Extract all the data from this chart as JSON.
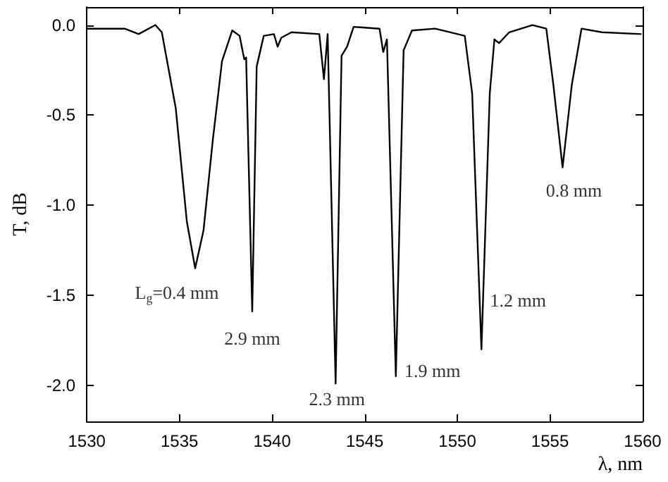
{
  "chart_data": {
    "type": "line",
    "xlabel": "λ, nm",
    "ylabel": "T, dB",
    "color": "#000000",
    "x": [
      1530,
      1532.05,
      1532.8,
      1533.7,
      1534.05,
      1534.8,
      1535.4,
      1535.85,
      1536.3,
      1536.8,
      1537.3,
      1537.85,
      1538.25,
      1538.5,
      1538.6,
      1538.93,
      1539.17,
      1539.55,
      1540.1,
      1540.3,
      1540.5,
      1541.05,
      1542.55,
      1542.8,
      1543.0,
      1543.43,
      1543.75,
      1544.05,
      1544.4,
      1545.8,
      1546.0,
      1546.2,
      1546.68,
      1547.1,
      1547.55,
      1548.8,
      1550.4,
      1550.8,
      1551.3,
      1551.75,
      1552.0,
      1552.25,
      1552.8,
      1554.05,
      1554.8,
      1555.18,
      1555.68,
      1556.18,
      1556.7,
      1557.8,
      1559.9
    ],
    "values": [
      -0.02,
      -0.02,
      -0.05,
      0.0,
      -0.04,
      -0.46,
      -1.09,
      -1.35,
      -1.14,
      -0.64,
      -0.2,
      -0.03,
      -0.06,
      -0.19,
      -0.18,
      -1.59,
      -0.23,
      -0.06,
      -0.05,
      -0.12,
      -0.07,
      -0.04,
      -0.05,
      -0.3,
      -0.05,
      -1.99,
      -0.17,
      -0.12,
      -0.01,
      -0.02,
      -0.15,
      -0.08,
      -1.95,
      -0.14,
      -0.03,
      -0.02,
      -0.06,
      -0.38,
      -1.8,
      -0.38,
      -0.08,
      -0.1,
      -0.04,
      0.0,
      -0.02,
      -0.33,
      -0.79,
      -0.33,
      -0.02,
      -0.04,
      -0.05
    ],
    "xlim": [
      1530,
      1560
    ],
    "xticks": [
      1530,
      1535,
      1540,
      1545,
      1550,
      1555,
      1560
    ],
    "ylim": [
      -2.2,
      0.1
    ],
    "yticks": [
      {
        "value": 0,
        "label": "0.0"
      },
      {
        "value": -0.5,
        "label": "-0.5"
      },
      {
        "value": -1,
        "label": "-1.0"
      },
      {
        "value": -1.5,
        "label": "-1.5"
      },
      {
        "value": -2,
        "label": "-2.0"
      }
    ],
    "marker": "none",
    "line_style": "solid",
    "annotations": [
      {
        "text": "L$_{g}$=0.4 mm",
        "x": 1535.85,
        "y": -1.35
      },
      {
        "text": "2.9 mm",
        "x": 1538.93,
        "y": -1.59
      },
      {
        "text": "2.3 mm",
        "x": 1543.43,
        "y": -1.99
      },
      {
        "text": "1.9 mm",
        "x": 1546.68,
        "y": -1.95
      },
      {
        "text": "1.2 mm",
        "x": 1551.3,
        "y": -1.8
      },
      {
        "text": "0.8 mm",
        "x": 1555.68,
        "y": -0.79
      }
    ]
  }
}
